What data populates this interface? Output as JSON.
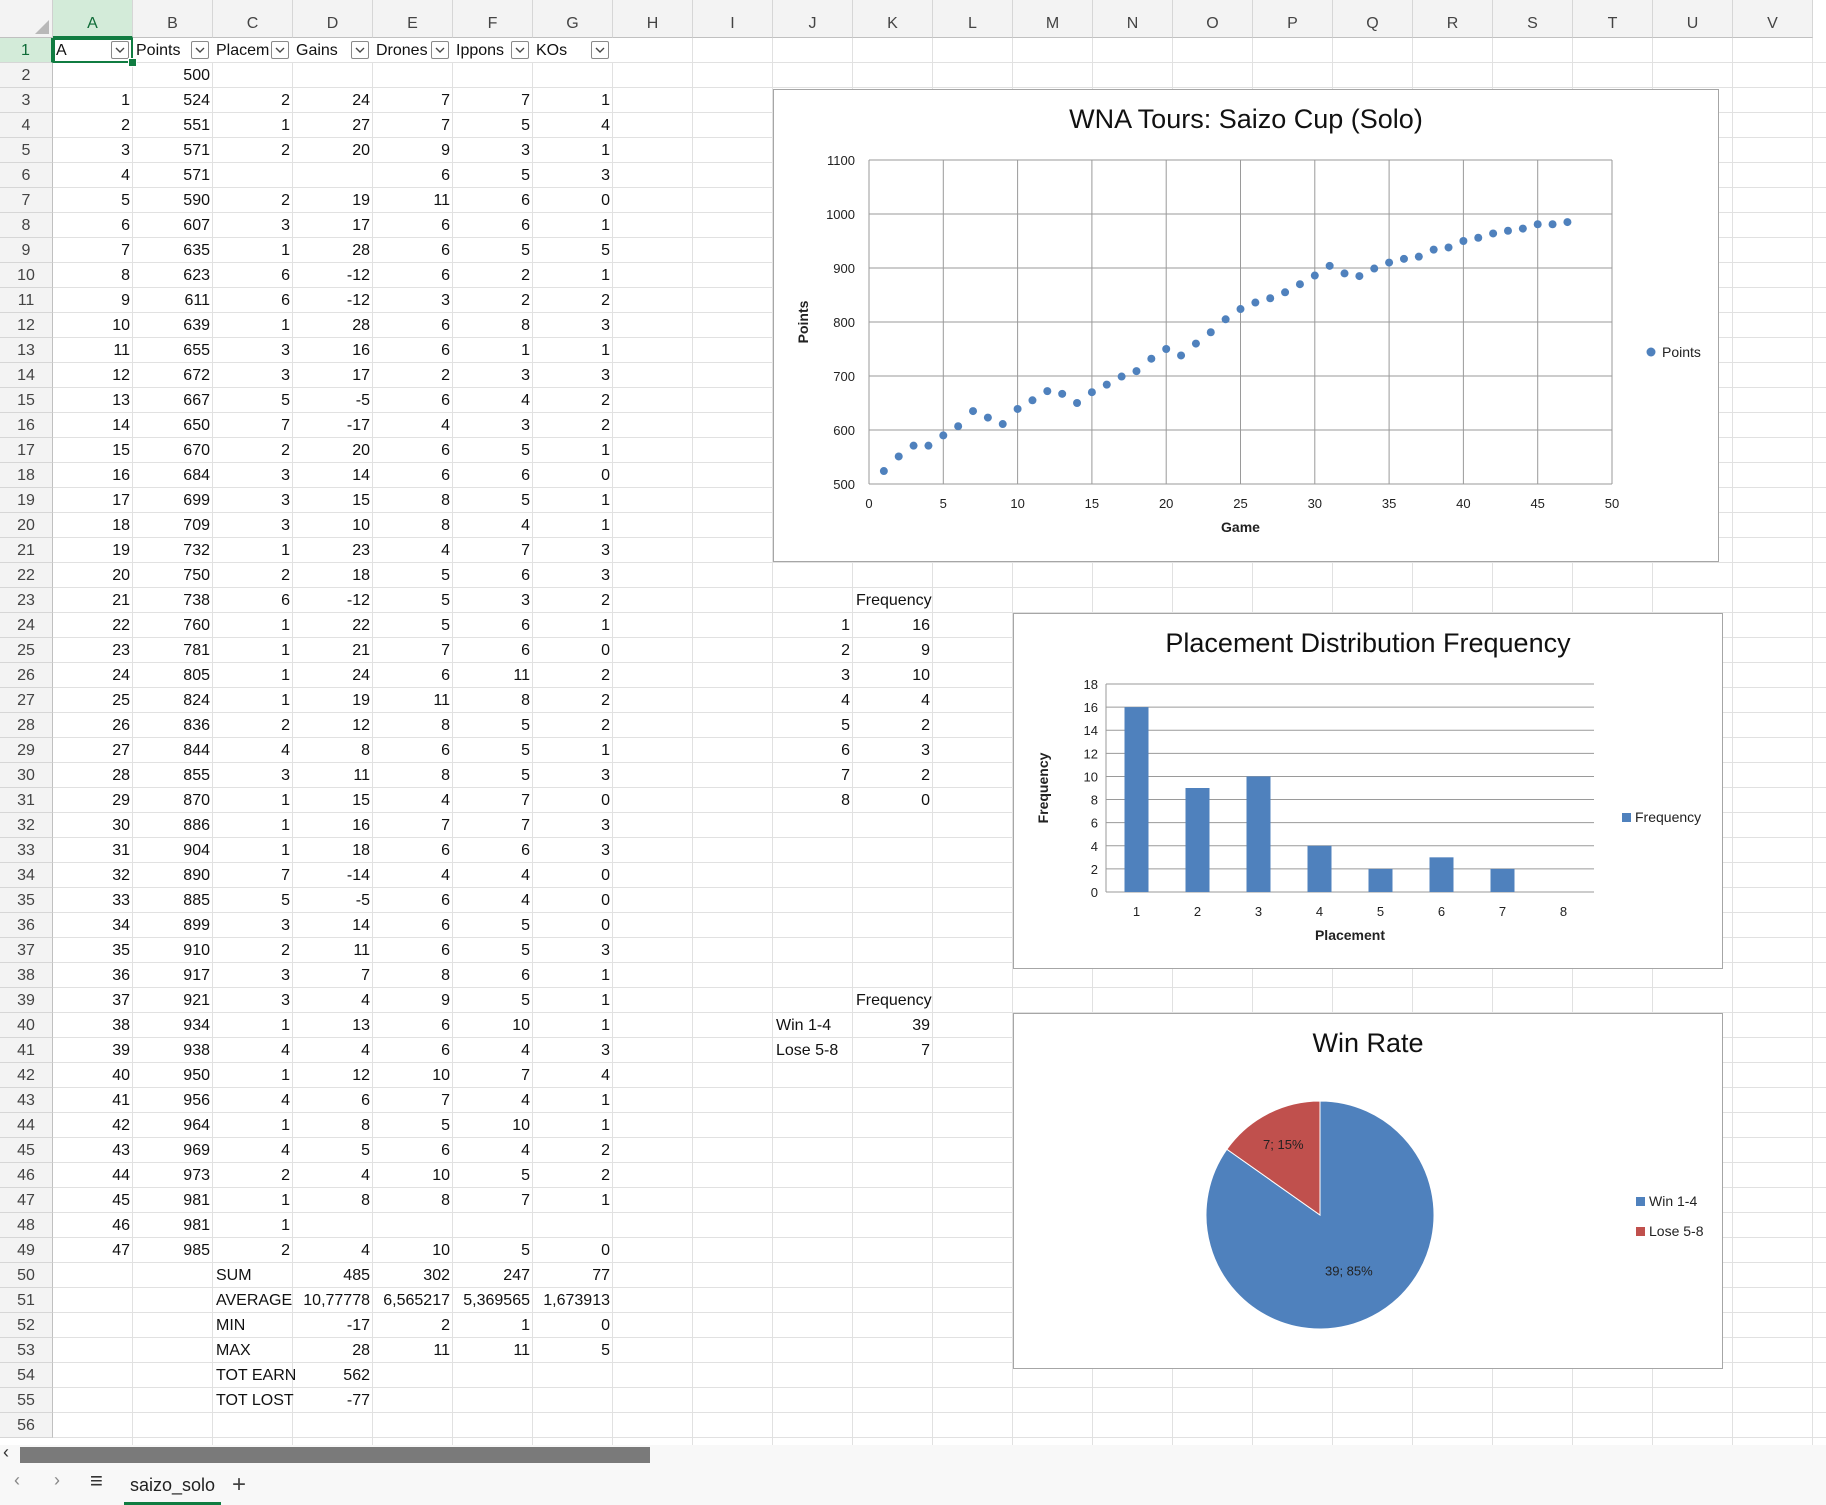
{
  "columns": [
    "A",
    "B",
    "C",
    "D",
    "E",
    "F",
    "G",
    "H",
    "I",
    "J",
    "K",
    "L",
    "M",
    "N",
    "O",
    "P",
    "Q",
    "R",
    "S",
    "T",
    "U",
    "V"
  ],
  "rows": 56,
  "selected_cell": {
    "col": "A",
    "row": 1
  },
  "header_row": [
    "A",
    "Points",
    "Placem",
    "Gains",
    "Drones",
    "Ippons",
    "KOs"
  ],
  "data_rows": [
    [
      "",
      "500",
      "",
      "",
      "",
      "",
      ""
    ],
    [
      "1",
      "524",
      "2",
      "24",
      "7",
      "7",
      "1"
    ],
    [
      "2",
      "551",
      "1",
      "27",
      "7",
      "5",
      "4"
    ],
    [
      "3",
      "571",
      "2",
      "20",
      "9",
      "3",
      "1"
    ],
    [
      "4",
      "571",
      "",
      "",
      "6",
      "5",
      "3"
    ],
    [
      "5",
      "590",
      "2",
      "19",
      "11",
      "6",
      "0"
    ],
    [
      "6",
      "607",
      "3",
      "17",
      "6",
      "6",
      "1"
    ],
    [
      "7",
      "635",
      "1",
      "28",
      "6",
      "5",
      "5"
    ],
    [
      "8",
      "623",
      "6",
      "-12",
      "6",
      "2",
      "1"
    ],
    [
      "9",
      "611",
      "6",
      "-12",
      "3",
      "2",
      "2"
    ],
    [
      "10",
      "639",
      "1",
      "28",
      "6",
      "8",
      "3"
    ],
    [
      "11",
      "655",
      "3",
      "16",
      "6",
      "1",
      "1"
    ],
    [
      "12",
      "672",
      "3",
      "17",
      "2",
      "3",
      "3"
    ],
    [
      "13",
      "667",
      "5",
      "-5",
      "6",
      "4",
      "2"
    ],
    [
      "14",
      "650",
      "7",
      "-17",
      "4",
      "3",
      "2"
    ],
    [
      "15",
      "670",
      "2",
      "20",
      "6",
      "5",
      "1"
    ],
    [
      "16",
      "684",
      "3",
      "14",
      "6",
      "6",
      "0"
    ],
    [
      "17",
      "699",
      "3",
      "15",
      "8",
      "5",
      "1"
    ],
    [
      "18",
      "709",
      "3",
      "10",
      "8",
      "4",
      "1"
    ],
    [
      "19",
      "732",
      "1",
      "23",
      "4",
      "7",
      "3"
    ],
    [
      "20",
      "750",
      "2",
      "18",
      "5",
      "6",
      "3"
    ],
    [
      "21",
      "738",
      "6",
      "-12",
      "5",
      "3",
      "2"
    ],
    [
      "22",
      "760",
      "1",
      "22",
      "5",
      "6",
      "1"
    ],
    [
      "23",
      "781",
      "1",
      "21",
      "7",
      "6",
      "0"
    ],
    [
      "24",
      "805",
      "1",
      "24",
      "6",
      "11",
      "2"
    ],
    [
      "25",
      "824",
      "1",
      "19",
      "11",
      "8",
      "2"
    ],
    [
      "26",
      "836",
      "2",
      "12",
      "8",
      "5",
      "2"
    ],
    [
      "27",
      "844",
      "4",
      "8",
      "6",
      "5",
      "1"
    ],
    [
      "28",
      "855",
      "3",
      "11",
      "8",
      "5",
      "3"
    ],
    [
      "29",
      "870",
      "1",
      "15",
      "4",
      "7",
      "0"
    ],
    [
      "30",
      "886",
      "1",
      "16",
      "7",
      "7",
      "3"
    ],
    [
      "31",
      "904",
      "1",
      "18",
      "6",
      "6",
      "3"
    ],
    [
      "32",
      "890",
      "7",
      "-14",
      "4",
      "4",
      "0"
    ],
    [
      "33",
      "885",
      "5",
      "-5",
      "6",
      "4",
      "0"
    ],
    [
      "34",
      "899",
      "3",
      "14",
      "6",
      "5",
      "0"
    ],
    [
      "35",
      "910",
      "2",
      "11",
      "6",
      "5",
      "3"
    ],
    [
      "36",
      "917",
      "3",
      "7",
      "8",
      "6",
      "1"
    ],
    [
      "37",
      "921",
      "3",
      "4",
      "9",
      "5",
      "1"
    ],
    [
      "38",
      "934",
      "1",
      "13",
      "6",
      "10",
      "1"
    ],
    [
      "39",
      "938",
      "4",
      "4",
      "6",
      "4",
      "3"
    ],
    [
      "40",
      "950",
      "1",
      "12",
      "10",
      "7",
      "4"
    ],
    [
      "41",
      "956",
      "4",
      "6",
      "7",
      "4",
      "1"
    ],
    [
      "42",
      "964",
      "1",
      "8",
      "5",
      "10",
      "1"
    ],
    [
      "43",
      "969",
      "4",
      "5",
      "6",
      "4",
      "2"
    ],
    [
      "44",
      "973",
      "2",
      "4",
      "10",
      "5",
      "2"
    ],
    [
      "45",
      "981",
      "1",
      "8",
      "8",
      "7",
      "1"
    ],
    [
      "46",
      "981",
      "1",
      "",
      "",
      "",
      ""
    ],
    [
      "47",
      "985",
      "2",
      "4",
      "10",
      "5",
      "0"
    ]
  ],
  "stats": [
    {
      "label": "SUM",
      "values": [
        "485",
        "302",
        "247",
        "77"
      ]
    },
    {
      "label": "AVERAGE",
      "values": [
        "10,77778",
        "6,565217",
        "5,369565",
        "1,673913"
      ]
    },
    {
      "label": "MIN",
      "values": [
        "-17",
        "2",
        "1",
        "0"
      ]
    },
    {
      "label": "MAX",
      "values": [
        "28",
        "11",
        "11",
        "5"
      ]
    },
    {
      "label": "TOT EARN",
      "values": [
        "562",
        "",
        "",
        ""
      ]
    },
    {
      "label": "TOT LOST",
      "values": [
        "-77",
        "",
        "",
        ""
      ]
    }
  ],
  "freq_table": {
    "header": "Frequency",
    "rows": [
      [
        "1",
        "16"
      ],
      [
        "2",
        "9"
      ],
      [
        "3",
        "10"
      ],
      [
        "4",
        "4"
      ],
      [
        "5",
        "2"
      ],
      [
        "6",
        "3"
      ],
      [
        "7",
        "2"
      ],
      [
        "8",
        "0"
      ]
    ]
  },
  "win_table": {
    "header": "Frequency",
    "rows": [
      [
        "Win 1-4",
        "39"
      ],
      [
        "Lose 5-8",
        "7"
      ]
    ]
  },
  "chart_data": [
    {
      "type": "scatter",
      "title": "WNA Tours: Saizo Cup (Solo)",
      "xlabel": "Game",
      "ylabel": "Points",
      "xlim": [
        0,
        50
      ],
      "ylim": [
        500,
        1100
      ],
      "xticks": [
        0,
        5,
        10,
        15,
        20,
        25,
        30,
        35,
        40,
        45,
        50
      ],
      "yticks": [
        500,
        600,
        700,
        800,
        900,
        1000,
        1100
      ],
      "grid": true,
      "legend": "right",
      "series": [
        {
          "name": "Points",
          "color": "#4f81bd",
          "x": [
            1,
            2,
            3,
            4,
            5,
            6,
            7,
            8,
            9,
            10,
            11,
            12,
            13,
            14,
            15,
            16,
            17,
            18,
            19,
            20,
            21,
            22,
            23,
            24,
            25,
            26,
            27,
            28,
            29,
            30,
            31,
            32,
            33,
            34,
            35,
            36,
            37,
            38,
            39,
            40,
            41,
            42,
            43,
            44,
            45,
            46,
            47
          ],
          "y": [
            524,
            551,
            571,
            571,
            590,
            607,
            635,
            623,
            611,
            639,
            655,
            672,
            667,
            650,
            670,
            684,
            699,
            709,
            732,
            750,
            738,
            760,
            781,
            805,
            824,
            836,
            844,
            855,
            870,
            886,
            904,
            890,
            885,
            899,
            910,
            917,
            921,
            934,
            938,
            950,
            956,
            964,
            969,
            973,
            981,
            981,
            985
          ]
        }
      ]
    },
    {
      "type": "bar",
      "title": "Placement Distribution Frequency",
      "xlabel": "Placement",
      "ylabel": "Frequency",
      "categories": [
        "1",
        "2",
        "3",
        "4",
        "5",
        "6",
        "7",
        "8"
      ],
      "ylim": [
        0,
        18
      ],
      "yticks": [
        0,
        2,
        4,
        6,
        8,
        10,
        12,
        14,
        16,
        18
      ],
      "grid": true,
      "legend": "right",
      "series": [
        {
          "name": "Frequency",
          "color": "#4f81bd",
          "values": [
            16,
            9,
            10,
            4,
            2,
            3,
            2,
            0
          ]
        }
      ]
    },
    {
      "type": "pie",
      "title": "Win Rate",
      "legend": "right",
      "labels": [
        "Win 1-4",
        "Lose 5-8"
      ],
      "values": [
        39,
        7
      ],
      "data_labels": [
        "39; 85%",
        "7; 15%"
      ],
      "colors": [
        "#4f81bd",
        "#c0504d"
      ]
    }
  ],
  "sheet_tab": "saizo_solo",
  "tab_controls": {
    "prev": "‹",
    "next": "›",
    "menu": "≡",
    "add": "+"
  }
}
